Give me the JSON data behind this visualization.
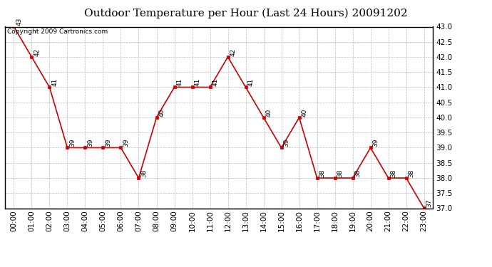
{
  "title": "Outdoor Temperature per Hour (Last 24 Hours) 20091202",
  "copyright_text": "Copyright 2009 Cartronics.com",
  "hours": [
    "00:00",
    "01:00",
    "02:00",
    "03:00",
    "04:00",
    "05:00",
    "06:00",
    "07:00",
    "08:00",
    "09:00",
    "10:00",
    "11:00",
    "12:00",
    "13:00",
    "14:00",
    "15:00",
    "16:00",
    "17:00",
    "18:00",
    "19:00",
    "20:00",
    "21:00",
    "22:00",
    "23:00"
  ],
  "temps": [
    43,
    42,
    41,
    39,
    39,
    39,
    39,
    38,
    40,
    41,
    41,
    41,
    42,
    41,
    40,
    39,
    40,
    38,
    38,
    38,
    39,
    38,
    38,
    37
  ],
  "ylim_min": 37.0,
  "ylim_max": 43.0,
  "ytick_interval": 0.5,
  "line_color": "#cc0000",
  "marker": "s",
  "marker_size": 3,
  "marker_linewidth": 1.0,
  "line_width": 1.2,
  "grid_color": "#bbbbbb",
  "bg_color": "#ffffff",
  "title_fontsize": 11,
  "label_fontsize": 6.5,
  "copyright_fontsize": 6.5,
  "tick_fontsize": 7.5
}
